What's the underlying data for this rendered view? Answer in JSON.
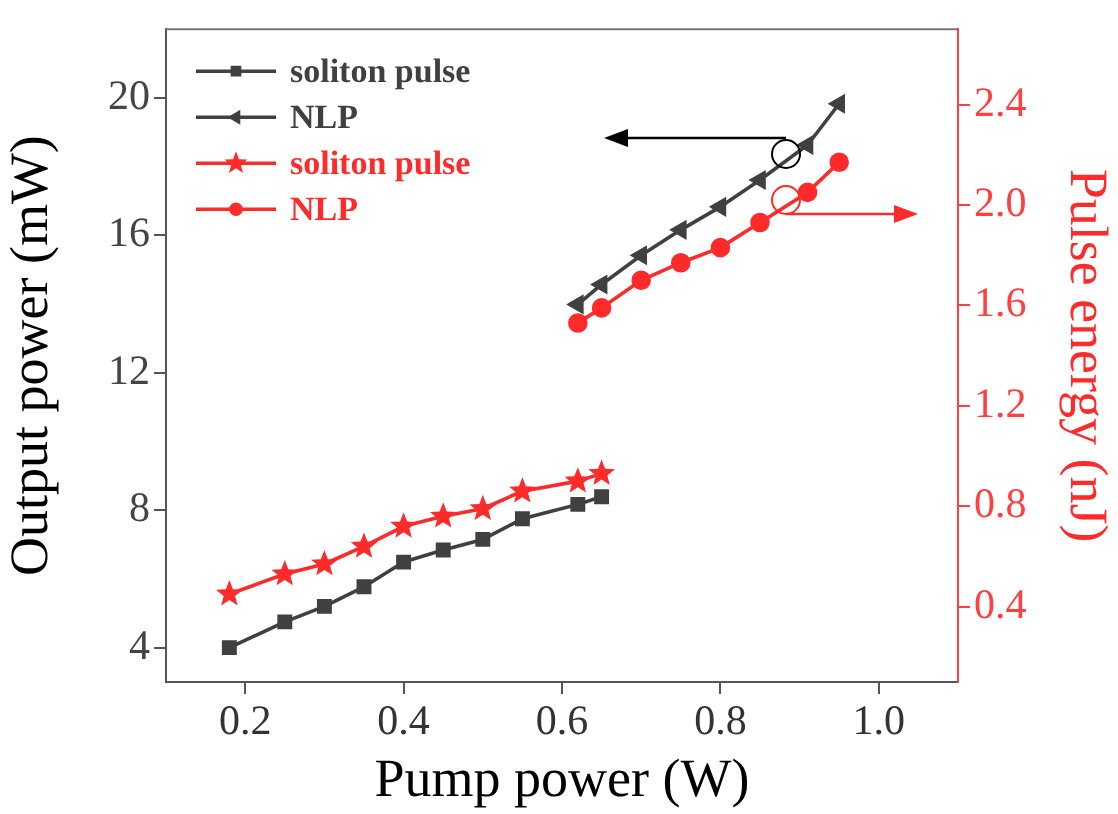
{
  "chart_data": {
    "type": "line",
    "xlabel": "Pump power (W)",
    "ylabel": "Output power (mW)",
    "y2label": "Pulse energy (nJ)",
    "xlim": [
      0.1,
      1.1
    ],
    "xticks": [
      0.2,
      0.4,
      0.6,
      0.8,
      {
        "value": 1,
        "label": "1.0"
      }
    ],
    "ylim": [
      3,
      22
    ],
    "yticks": [
      4,
      8,
      12,
      16,
      20
    ],
    "y2lim": [
      0.1,
      2.7
    ],
    "y2ticks": [
      0.4,
      0.8,
      1.2,
      1.6,
      {
        "value": 2,
        "label": "2.0"
      },
      2.4
    ],
    "legend": "top left",
    "grid": false,
    "line_style": "solid",
    "series": [
      {
        "name": "soliton pulse",
        "color": "#404040",
        "marker": "square",
        "x": [
          0.18,
          0.25,
          0.3,
          0.35,
          0.4,
          0.45,
          0.5,
          0.55,
          0.62,
          0.65
        ],
        "values": [
          4.0,
          4.75,
          5.2,
          5.77,
          6.49,
          6.84,
          7.15,
          7.75,
          8.17,
          8.39
        ]
      },
      {
        "name": "NLP",
        "color": "#404040",
        "marker": "triangle",
        "x": [
          0.62,
          0.65,
          0.7,
          0.75,
          0.8,
          0.85,
          0.91,
          0.95
        ],
        "values": [
          13.99,
          14.57,
          15.42,
          16.16,
          16.83,
          17.61,
          18.63,
          19.83
        ]
      },
      {
        "name": "soliton pulse",
        "color": "#ff2a2a",
        "marker": "star",
        "axis": "y2",
        "x": [
          0.18,
          0.25,
          0.3,
          0.35,
          0.4,
          0.45,
          0.5,
          0.55,
          0.62,
          0.65
        ],
        "values": [
          0.45,
          0.53,
          0.57,
          0.64,
          0.72,
          0.76,
          0.79,
          0.86,
          0.9,
          0.93
        ]
      },
      {
        "name": "NLP",
        "color": "#ff2a2a",
        "marker": "circle",
        "axis": "y2",
        "x": [
          0.62,
          0.65,
          0.7,
          0.75,
          0.8,
          0.85,
          0.91,
          0.95
        ],
        "values": [
          1.53,
          1.59,
          1.7,
          1.77,
          1.83,
          1.93,
          2.05,
          2.17
        ]
      }
    ]
  }
}
